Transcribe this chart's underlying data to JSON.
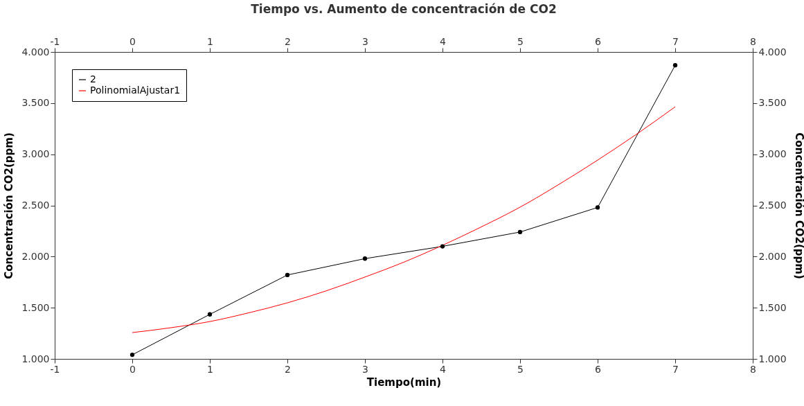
{
  "chart_data": {
    "type": "line",
    "title": "Tiempo vs. Aumento de concentración de CO2",
    "xlabel": "Tiempo(min)",
    "ylabel": "Concentración CO2(ppm)",
    "y2label": "Concentración CO2(ppm)",
    "x": [
      0,
      1,
      2,
      3,
      4,
      5,
      6,
      7
    ],
    "series": [
      {
        "name": "2",
        "color": "#000000",
        "marker": "circle",
        "values": [
          1040,
          1435,
          1820,
          1980,
          2100,
          2240,
          2480,
          3870
        ]
      },
      {
        "name": "PolinomialAjustar1",
        "color": "#ff0000",
        "marker": "none",
        "x": [
          0,
          0.5,
          1,
          1.5,
          2,
          2.5,
          3,
          3.5,
          4,
          4.5,
          5,
          5.5,
          6,
          6.5,
          7
        ],
        "values": [
          1257,
          1305,
          1365,
          1450,
          1548,
          1665,
          1800,
          1945,
          2110,
          2290,
          2483,
          2705,
          2943,
          3195,
          3464
        ]
      }
    ],
    "xlim": [
      -1,
      8
    ],
    "xticks": [
      -1,
      0,
      1,
      2,
      3,
      4,
      5,
      6,
      7,
      8
    ],
    "x2lim": [
      -1,
      8
    ],
    "x2ticks": [
      -1,
      0,
      1,
      2,
      3,
      4,
      5,
      6,
      7,
      8
    ],
    "ylim": [
      1000,
      4000
    ],
    "yticks": [
      {
        "value": 1000,
        "label": "1.000"
      },
      {
        "value": 1500,
        "label": "1.500"
      },
      {
        "value": 2000,
        "label": "2.000"
      },
      {
        "value": 2500,
        "label": "2.500"
      },
      {
        "value": 3000,
        "label": "3.000"
      },
      {
        "value": 3500,
        "label": "3.500"
      },
      {
        "value": 4000,
        "label": "4.000"
      }
    ],
    "y2lim": [
      1000,
      4000
    ],
    "y2ticks": [
      {
        "value": 1000,
        "label": "1.000"
      },
      {
        "value": 1500,
        "label": "1.500"
      },
      {
        "value": 2000,
        "label": "2.000"
      },
      {
        "value": 2500,
        "label": "2.500"
      },
      {
        "value": 3000,
        "label": "3.000"
      },
      {
        "value": 3500,
        "label": "3.500"
      },
      {
        "value": 4000,
        "label": "4.000"
      }
    ],
    "grid": false,
    "legend": "top left",
    "line_style": "solid"
  }
}
